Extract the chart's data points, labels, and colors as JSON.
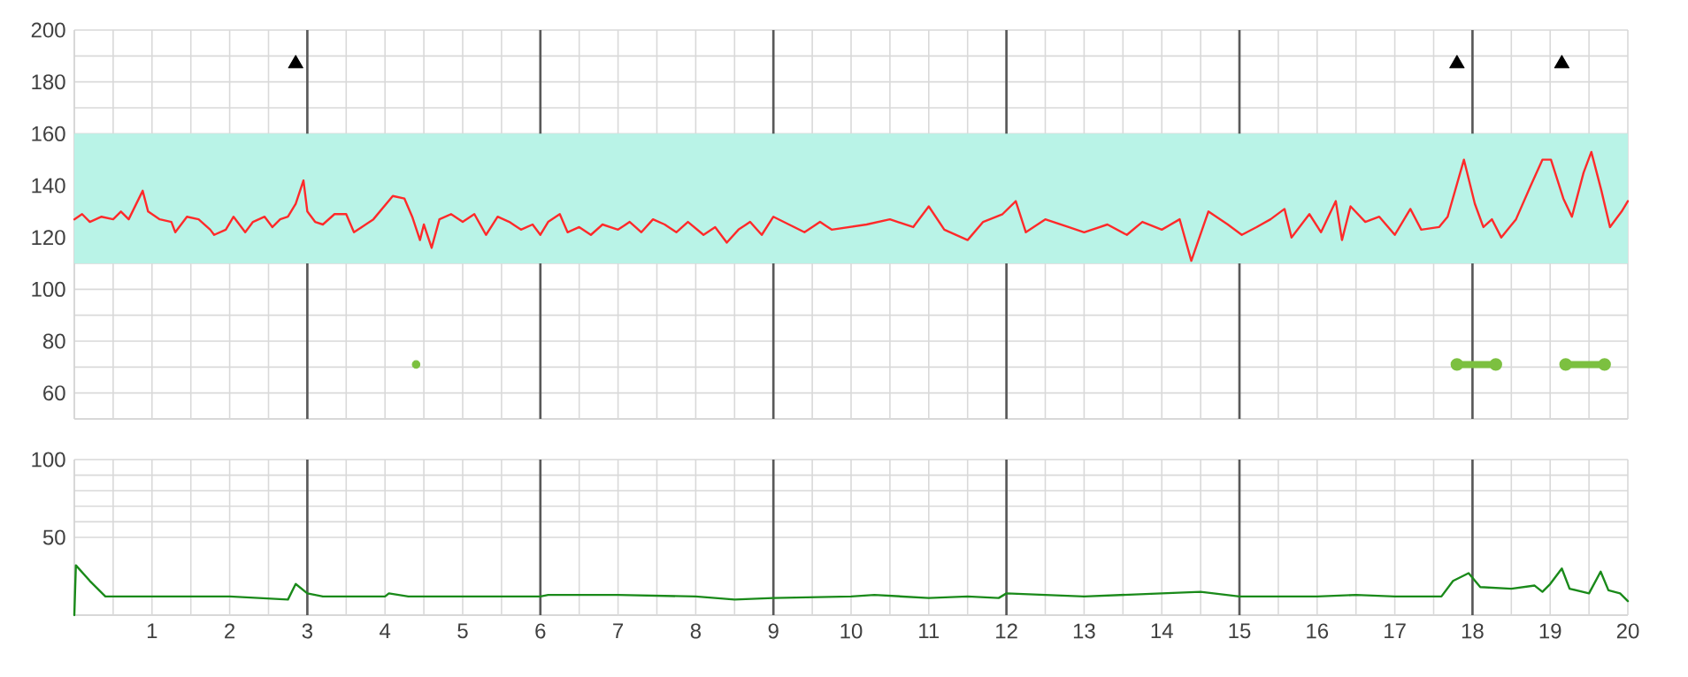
{
  "chart_data": [
    {
      "type": "line",
      "xlim": [
        0,
        20
      ],
      "ylim": [
        50,
        200
      ],
      "xticks": [
        {
          "value": 0,
          "label": null
        },
        {
          "value": 1,
          "label": null
        },
        {
          "value": 2,
          "label": null
        },
        {
          "value": 3,
          "label": null
        },
        {
          "value": 4,
          "label": null
        },
        {
          "value": 5,
          "label": null
        },
        {
          "value": 6,
          "label": null
        },
        {
          "value": 7,
          "label": null
        },
        {
          "value": 8,
          "label": null
        },
        {
          "value": 9,
          "label": null
        },
        {
          "value": 10,
          "label": null
        },
        {
          "value": 11,
          "label": null
        },
        {
          "value": 12,
          "label": null
        },
        {
          "value": 13,
          "label": null
        },
        {
          "value": 14,
          "label": null
        },
        {
          "value": 15,
          "label": null
        },
        {
          "value": 16,
          "label": null
        },
        {
          "value": 17,
          "label": null
        },
        {
          "value": 18,
          "label": null
        },
        {
          "value": 19,
          "label": null
        },
        {
          "value": 20,
          "label": null
        }
      ],
      "yticks": [
        60,
        80,
        100,
        120,
        140,
        160,
        180,
        200
      ],
      "tick_labels": "y",
      "grid": true,
      "bands": [
        {
          "axis": "y",
          "from": 110,
          "to": 160,
          "color": "#b9f3e7"
        }
      ],
      "series": [
        {
          "color": "#ff2a2a",
          "x": [
            0,
            0.1,
            0.2,
            0.35,
            0.5,
            0.6,
            0.7,
            0.88,
            0.95,
            1.1,
            1.25,
            1.3,
            1.45,
            1.6,
            1.75,
            1.8,
            1.95,
            2.05,
            2.2,
            2.3,
            2.45,
            2.55,
            2.65,
            2.75,
            2.85,
            2.95,
            3.0,
            3.1,
            3.2,
            3.35,
            3.5,
            3.6,
            3.7,
            3.85,
            4.1,
            4.25,
            4.35,
            4.45,
            4.5,
            4.6,
            4.7,
            4.85,
            5.0,
            5.15,
            5.3,
            5.45,
            5.6,
            5.75,
            5.9,
            6.0,
            6.1,
            6.25,
            6.35,
            6.5,
            6.65,
            6.8,
            7.0,
            7.15,
            7.3,
            7.45,
            7.6,
            7.75,
            7.9,
            8.1,
            8.25,
            8.4,
            8.55,
            8.7,
            8.85,
            9.0,
            9.2,
            9.4,
            9.6,
            9.75,
            10.2,
            10.5,
            10.8,
            11.0,
            11.2,
            11.5,
            11.7,
            11.95,
            12.12,
            12.25,
            12.5,
            12.8,
            13.0,
            13.3,
            13.55,
            13.75,
            14.0,
            14.23,
            14.38,
            14.6,
            14.85,
            15.03,
            15.22,
            15.4,
            15.58,
            15.67,
            15.9,
            16.05,
            16.24,
            16.32,
            16.43,
            16.62,
            16.8,
            17.0,
            17.2,
            17.34,
            17.57,
            17.68,
            17.89,
            18.03,
            18.14,
            18.25,
            18.37,
            18.56,
            18.75,
            18.9,
            19.01,
            19.17,
            19.28,
            19.43,
            19.53,
            19.66,
            19.77,
            19.92,
            20
          ],
          "values": [
            127,
            129,
            126,
            128,
            127,
            130,
            127,
            138,
            130,
            127,
            126,
            122,
            128,
            127,
            123,
            121,
            123,
            128,
            122,
            126,
            128,
            124,
            127,
            128,
            133,
            142,
            130,
            126,
            125,
            129,
            129,
            122,
            124,
            127,
            136,
            135,
            128,
            119,
            125,
            116,
            127,
            129,
            126,
            129,
            121,
            128,
            126,
            123,
            125,
            121,
            126,
            129,
            122,
            124,
            121,
            125,
            123,
            126,
            122,
            127,
            125,
            122,
            126,
            121,
            124,
            118,
            123,
            126,
            121,
            128,
            125,
            122,
            126,
            123,
            125,
            127,
            124,
            132,
            123,
            119,
            126,
            129,
            134,
            122,
            127,
            124,
            122,
            125,
            121,
            126,
            123,
            127,
            111,
            130,
            125,
            121,
            124,
            127,
            131,
            120,
            129,
            122,
            134,
            119,
            132,
            126,
            128,
            121,
            131,
            123,
            124,
            128,
            150,
            133,
            124,
            127,
            120,
            127,
            140,
            150,
            150,
            135,
            128,
            145,
            153,
            138,
            124,
            130,
            134
          ]
        },
        {
          "type": "scatter",
          "marker": "triangle",
          "color": "#000000",
          "x": [
            2.85,
            17.8,
            19.15
          ],
          "values": [
            187,
            187,
            187
          ]
        },
        {
          "type": "scatter",
          "marker": "circle",
          "color": "#7cc040",
          "x": [
            4.4
          ],
          "values": [
            71
          ]
        },
        {
          "marker": "circle",
          "color": "#7cc040",
          "x": [
            17.8,
            18.3,
            null,
            19.2,
            19.7
          ],
          "values": [
            71,
            71,
            null,
            71,
            71
          ]
        }
      ]
    },
    {
      "type": "line",
      "xlim": [
        0,
        20
      ],
      "ylim": [
        0,
        100
      ],
      "xticks": [
        1,
        2,
        3,
        4,
        5,
        6,
        7,
        8,
        9,
        10,
        11,
        12,
        13,
        14,
        15,
        16,
        17,
        18,
        19,
        20
      ],
      "yticks": [
        50,
        100
      ],
      "grid": true,
      "series": [
        {
          "color": "#1a8a1a",
          "x": [
            0,
            0.02,
            0.2,
            0.4,
            1,
            2,
            2.75,
            2.85,
            3.0,
            3.2,
            4.0,
            4.05,
            4.3,
            6.0,
            6.1,
            7,
            8,
            8.5,
            9,
            10,
            10.3,
            11,
            11.5,
            11.9,
            12.0,
            12.5,
            13,
            14,
            14.5,
            15,
            16,
            16.5,
            17,
            17.6,
            17.75,
            17.95,
            18.1,
            18.5,
            18.8,
            18.9,
            19.0,
            19.15,
            19.25,
            19.5,
            19.65,
            19.75,
            19.9,
            20
          ],
          "values": [
            0,
            32,
            22,
            12,
            12,
            12,
            10,
            20,
            14,
            12,
            12,
            14,
            12,
            12,
            13,
            13,
            12,
            10,
            11,
            12,
            13,
            11,
            12,
            11,
            14,
            13,
            12,
            14,
            15,
            12,
            12,
            13,
            12,
            12,
            22,
            27,
            18,
            17,
            19,
            15,
            20,
            30,
            17,
            14,
            28,
            16,
            14,
            9
          ]
        }
      ]
    }
  ]
}
